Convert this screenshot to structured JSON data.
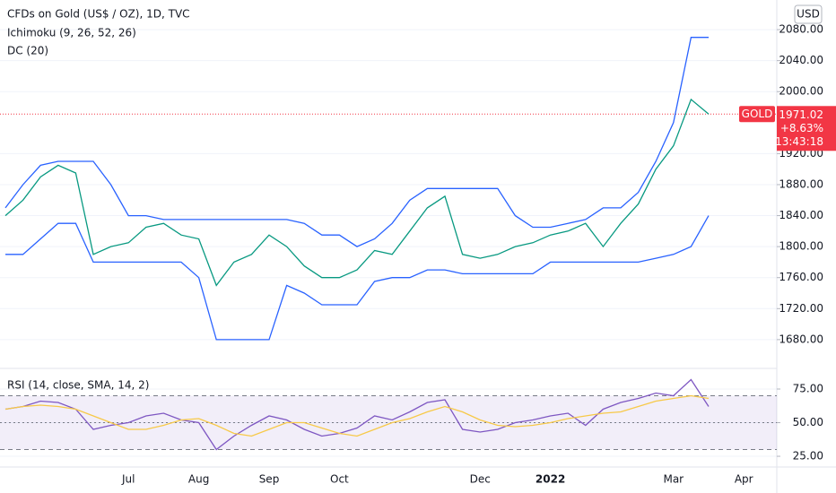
{
  "chart_data": [
    {
      "type": "line",
      "title": "CFDs on Gold (US$ / OZ), 1D, TVC",
      "subtitle": "Ichimoku (9, 26, 52, 26)",
      "annotation": "DC (20)",
      "y_unit": "USD",
      "ylim": [
        1644,
        2109
      ],
      "yticks": [
        {
          "value": 1680,
          "label": "1680.00"
        },
        {
          "value": 1720,
          "label": "1720.00"
        },
        {
          "value": 1760,
          "label": "1760.00"
        },
        {
          "value": 1800,
          "label": "1800.00"
        },
        {
          "value": 1840,
          "label": "1840.00"
        },
        {
          "value": 1880,
          "label": "1880.00"
        },
        {
          "value": 1920,
          "label": "1920.00"
        },
        {
          "value": 2000,
          "label": "2000.00"
        },
        {
          "value": 2040,
          "label": "2040.00"
        },
        {
          "value": 2080,
          "label": "2080.00"
        }
      ],
      "price_tag": {
        "symbol": "GOLD",
        "price": 1971.02,
        "change": "+8.63%",
        "countdown": "13:43:18",
        "color": "#f23645"
      },
      "series": [
        {
          "color": "#2962ff",
          "values": [
            1850,
            1880,
            1905,
            1910,
            1910,
            1910,
            1880,
            1840,
            1840,
            1835,
            1835,
            1835,
            1835,
            1835,
            1835,
            1835,
            1835,
            1830,
            1815,
            1815,
            1800,
            1810,
            1830,
            1860,
            1875,
            1875,
            1875,
            1875,
            1875,
            1840,
            1825,
            1825,
            1830,
            1835,
            1850,
            1850,
            1870,
            1910,
            1960,
            2070,
            2070,
            null,
            null,
            null
          ]
        },
        {
          "color": "#2962ff",
          "values": [
            1790,
            1790,
            1810,
            1830,
            1830,
            1780,
            1780,
            1780,
            1780,
            1780,
            1780,
            1760,
            1680,
            1680,
            1680,
            1680,
            1750,
            1740,
            1725,
            1725,
            1725,
            1755,
            1760,
            1760,
            1770,
            1770,
            1765,
            1765,
            1765,
            1765,
            1765,
            1780,
            1780,
            1780,
            1780,
            1780,
            1780,
            1785,
            1790,
            1800,
            1840,
            null,
            null,
            null
          ]
        },
        {
          "color": "#089981",
          "values": [
            1840,
            1860,
            1890,
            1905,
            1895,
            1790,
            1800,
            1805,
            1825,
            1830,
            1815,
            1810,
            1750,
            1780,
            1790,
            1815,
            1800,
            1775,
            1760,
            1760,
            1770,
            1795,
            1790,
            1820,
            1850,
            1865,
            1790,
            1785,
            1790,
            1800,
            1805,
            1815,
            1820,
            1830,
            1800,
            1830,
            1855,
            1900,
            1930,
            1990,
            1971.02,
            null,
            null,
            null
          ]
        }
      ]
    },
    {
      "type": "line",
      "title": "RSI (14, close, SMA, 14, 2)",
      "ylim": [
        17.7,
        89
      ],
      "yticks": [
        {
          "value": 25,
          "label": "25.00"
        },
        {
          "value": 50,
          "label": "50.00"
        },
        {
          "value": 75,
          "label": "75.00"
        }
      ],
      "bands": [
        30,
        50,
        70
      ],
      "categories": [
        null,
        null,
        null,
        null,
        null,
        null,
        null,
        "Jul",
        null,
        null,
        null,
        "Aug",
        null,
        null,
        null,
        "Sep",
        null,
        null,
        null,
        "Oct",
        null,
        null,
        null,
        null,
        null,
        null,
        null,
        "Dec",
        null,
        null,
        null,
        "2022",
        null,
        null,
        null,
        null,
        null,
        null,
        "Mar",
        null,
        null,
        null,
        "Apr",
        null
      ],
      "series": [
        {
          "color": "#7e57c2",
          "values": [
            60,
            62,
            66,
            65,
            60,
            45,
            48,
            50,
            55,
            57,
            52,
            50,
            30,
            40,
            48,
            55,
            52,
            45,
            40,
            42,
            46,
            55,
            52,
            58,
            65,
            67,
            45,
            43,
            45,
            50,
            52,
            55,
            57,
            48,
            60,
            65,
            68,
            72,
            70,
            82,
            62,
            null,
            null,
            null
          ]
        },
        {
          "color": "#f7c948",
          "values": [
            60,
            62,
            63,
            62,
            60,
            55,
            50,
            45,
            45,
            48,
            52,
            53,
            48,
            42,
            40,
            45,
            50,
            50,
            46,
            42,
            40,
            45,
            50,
            53,
            58,
            62,
            58,
            52,
            48,
            47,
            48,
            50,
            53,
            55,
            57,
            58,
            62,
            66,
            68,
            70,
            68,
            null,
            null,
            null
          ]
        }
      ]
    }
  ]
}
